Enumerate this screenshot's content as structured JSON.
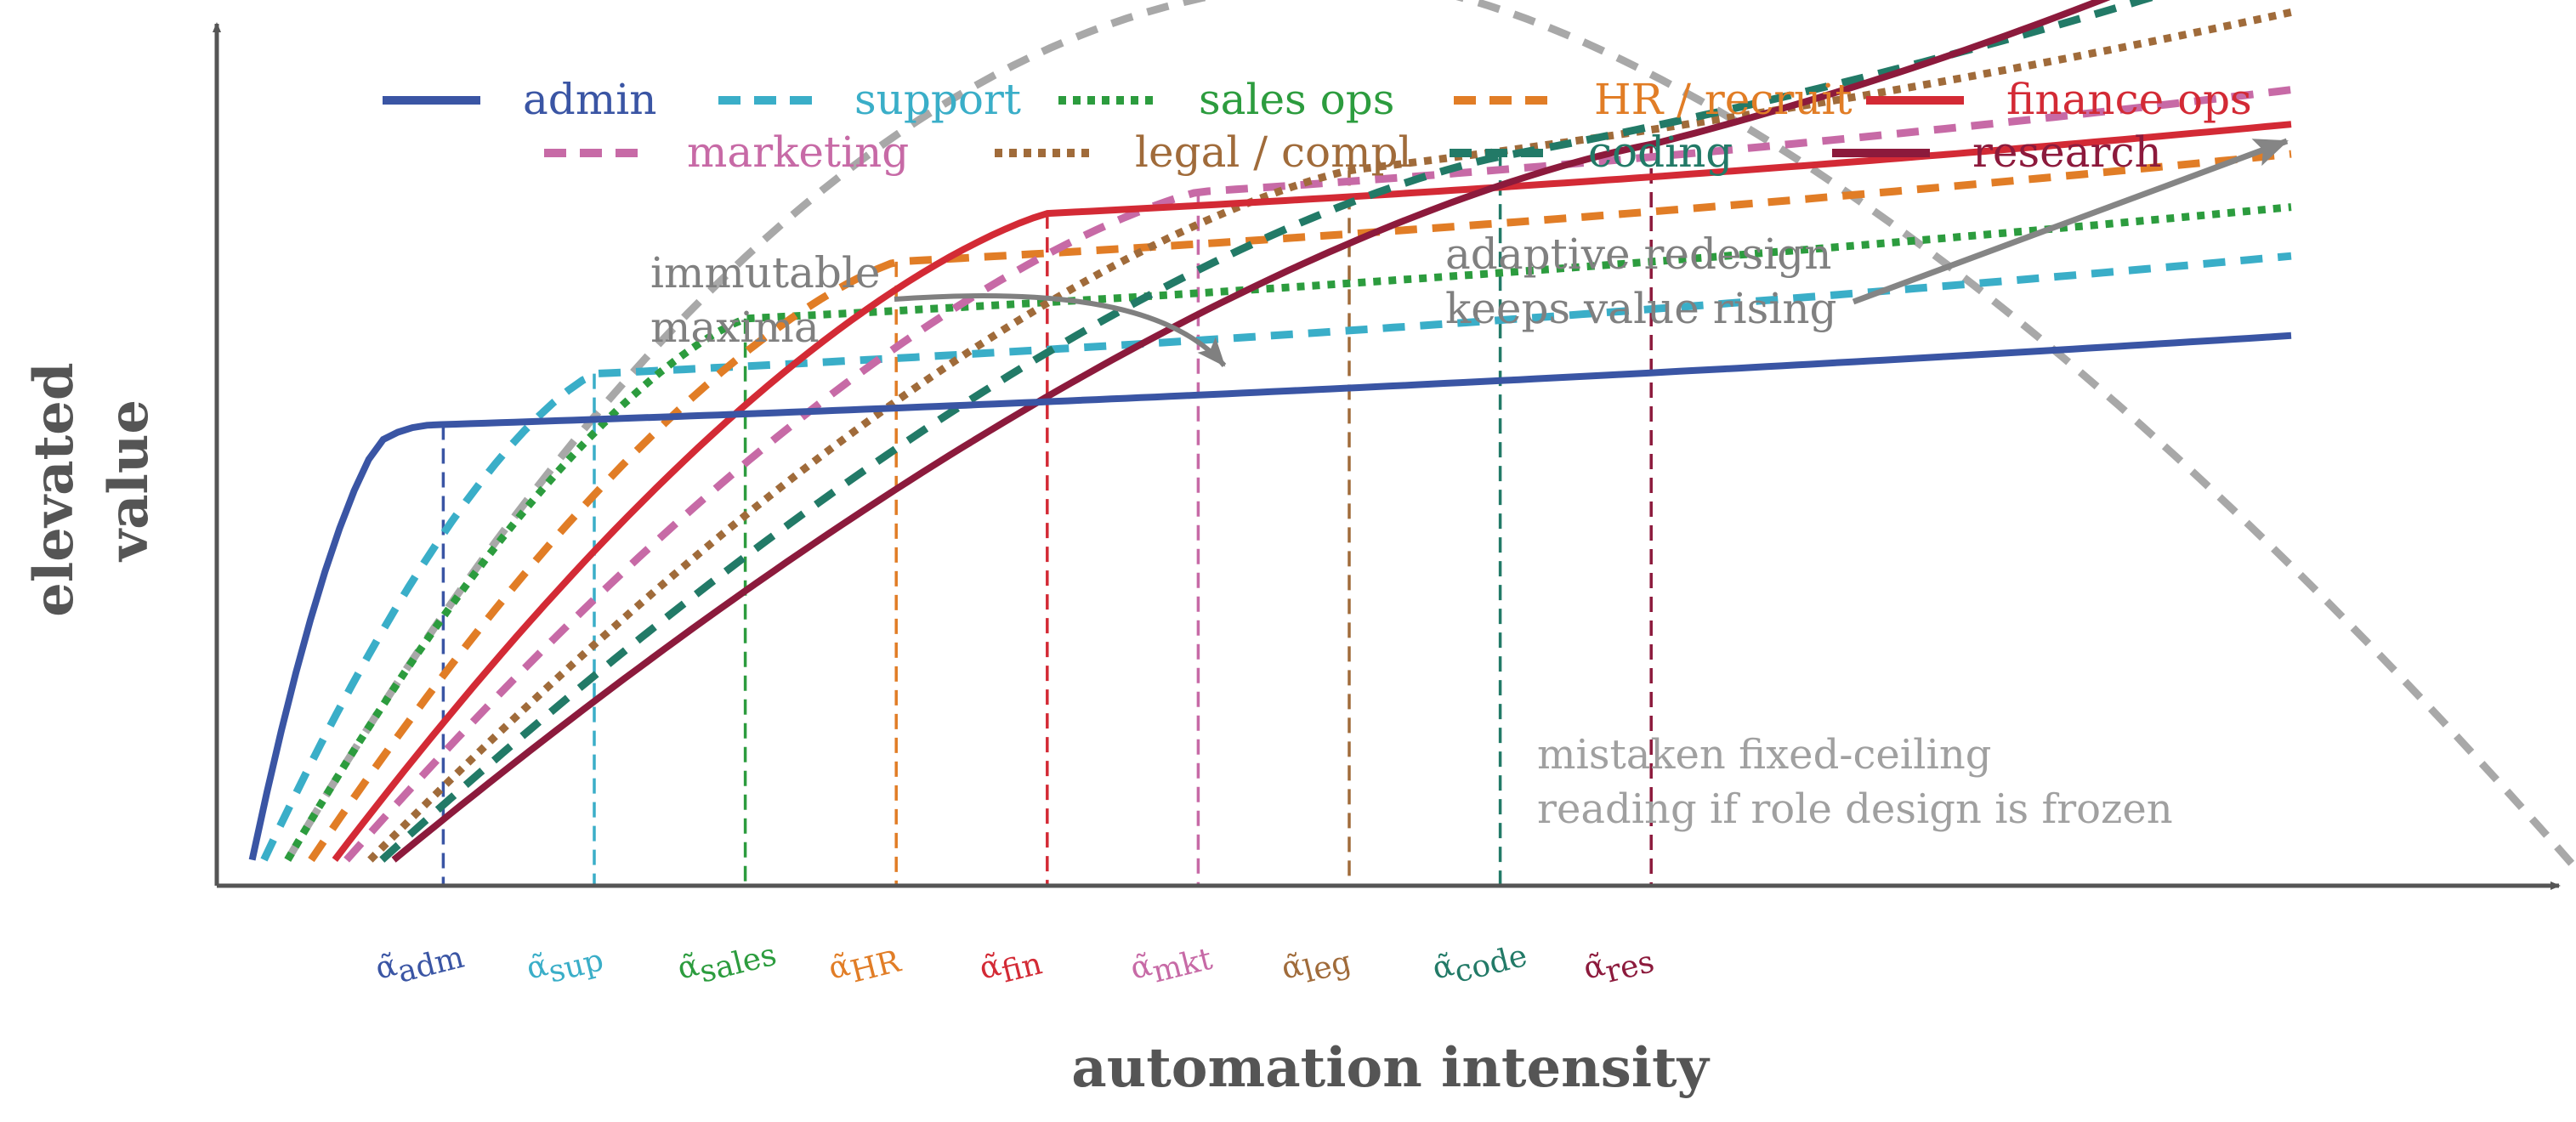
{
  "chart_data": {
    "type": "line",
    "title": "",
    "xlabel": "automation intensity",
    "ylabel": "elevated value",
    "ylabel_lines": [
      "elevated",
      "value"
    ],
    "xlim": [
      0,
      1
    ],
    "ylim": [
      0,
      1
    ],
    "axes_ticks": "none",
    "grid": false,
    "legend_placement": "top",
    "series": [
      {
        "key": "adm",
        "name": "admin",
        "color": "#3a55a4",
        "dash": "solid",
        "x_start": 0.015,
        "threshold": 0.096,
        "y_start": 0.03,
        "y_plateau": 0.535,
        "y_end": 0.66
      },
      {
        "key": "sup",
        "name": "support",
        "color": "#3aaec8",
        "dash": "dashed",
        "x_start": 0.02,
        "threshold": 0.16,
        "y_start": 0.03,
        "y_plateau": 0.594,
        "y_end": 0.762
      },
      {
        "key": "sales",
        "name": "sales ops",
        "color": "#2c9c3e",
        "dash": "dotted",
        "x_start": 0.03,
        "threshold": 0.224,
        "y_start": 0.03,
        "y_plateau": 0.658,
        "y_end": 0.82
      },
      {
        "key": "HR",
        "name": "HR / recruit",
        "color": "#e17d26",
        "dash": "dashed",
        "x_start": 0.04,
        "threshold": 0.288,
        "y_start": 0.03,
        "y_plateau": 0.724,
        "y_end": 0.884
      },
      {
        "key": "fin",
        "name": "finance ops",
        "color": "#d32a35",
        "dash": "solid",
        "x_start": 0.05,
        "threshold": 0.352,
        "y_start": 0.03,
        "y_plateau": 0.78,
        "y_end": 0.916
      },
      {
        "key": "mkt",
        "name": "marketing",
        "color": "#c76aa6",
        "dash": "dashed",
        "x_start": 0.055,
        "threshold": 0.416,
        "y_start": 0.03,
        "y_plateau": 0.805,
        "y_end": 0.966
      },
      {
        "key": "leg",
        "name": "legal / compl",
        "color": "#a06b3a",
        "dash": "dotted",
        "x_start": 0.065,
        "threshold": 0.48,
        "y_start": 0.03,
        "y_plateau": 0.83,
        "y_end": 1.09
      },
      {
        "key": "code",
        "name": "coding",
        "color": "#227a67",
        "dash": "dashed",
        "x_start": 0.07,
        "threshold": 0.544,
        "y_start": 0.03,
        "y_plateau": 0.846,
        "y_end": 1.2
      },
      {
        "key": "res",
        "name": "research",
        "color": "#8c1a3c",
        "dash": "solid",
        "x_start": 0.075,
        "threshold": 0.608,
        "y_start": 0.03,
        "y_plateau": 0.86,
        "y_end": 1.28
      }
    ],
    "legend_rows": [
      [
        "adm",
        "sup",
        "sales",
        "HR",
        "fin"
      ],
      [
        "mkt",
        "leg",
        "code",
        "res"
      ]
    ],
    "thresholds": [
      {
        "key": "adm",
        "base": "α̃",
        "sub": "adm",
        "x": 0.096
      },
      {
        "key": "sup",
        "base": "α̃",
        "sub": "sup",
        "x": 0.16
      },
      {
        "key": "sales",
        "base": "α̃",
        "sub": "sales",
        "x": 0.224
      },
      {
        "key": "HR",
        "base": "α̃",
        "sub": "HR",
        "x": 0.288
      },
      {
        "key": "fin",
        "base": "α̃",
        "sub": "fin",
        "x": 0.352
      },
      {
        "key": "mkt",
        "base": "α̃",
        "sub": "mkt",
        "x": 0.416
      },
      {
        "key": "leg",
        "base": "α̃",
        "sub": "leg",
        "x": 0.48
      },
      {
        "key": "code",
        "base": "α̃",
        "sub": "code",
        "x": 0.544
      },
      {
        "key": "res",
        "base": "α̃",
        "sub": "res",
        "x": 0.608
      }
    ],
    "frozen_curve": {
      "name": "mistaken fixed-ceiling reading if role design is frozen",
      "color": "#a8a8a8",
      "dash": "dashed",
      "peak_x": 0.488,
      "peak_y": 1.05,
      "x_start": 0.03,
      "y_start": 0.03,
      "x_end": 1.0,
      "y_end": 0.02
    },
    "annotations": [
      {
        "key": "maxima",
        "lines": [
          "immutable",
          "maxima"
        ],
        "color": "#808080"
      },
      {
        "key": "adaptive",
        "lines": [
          "adaptive redesign",
          "keeps value rising"
        ],
        "color": "#808080"
      },
      {
        "key": "frozen",
        "lines": [
          "mistaken fixed-ceiling",
          "reading if role design is frozen"
        ],
        "color": "#a0a0a0"
      }
    ]
  }
}
